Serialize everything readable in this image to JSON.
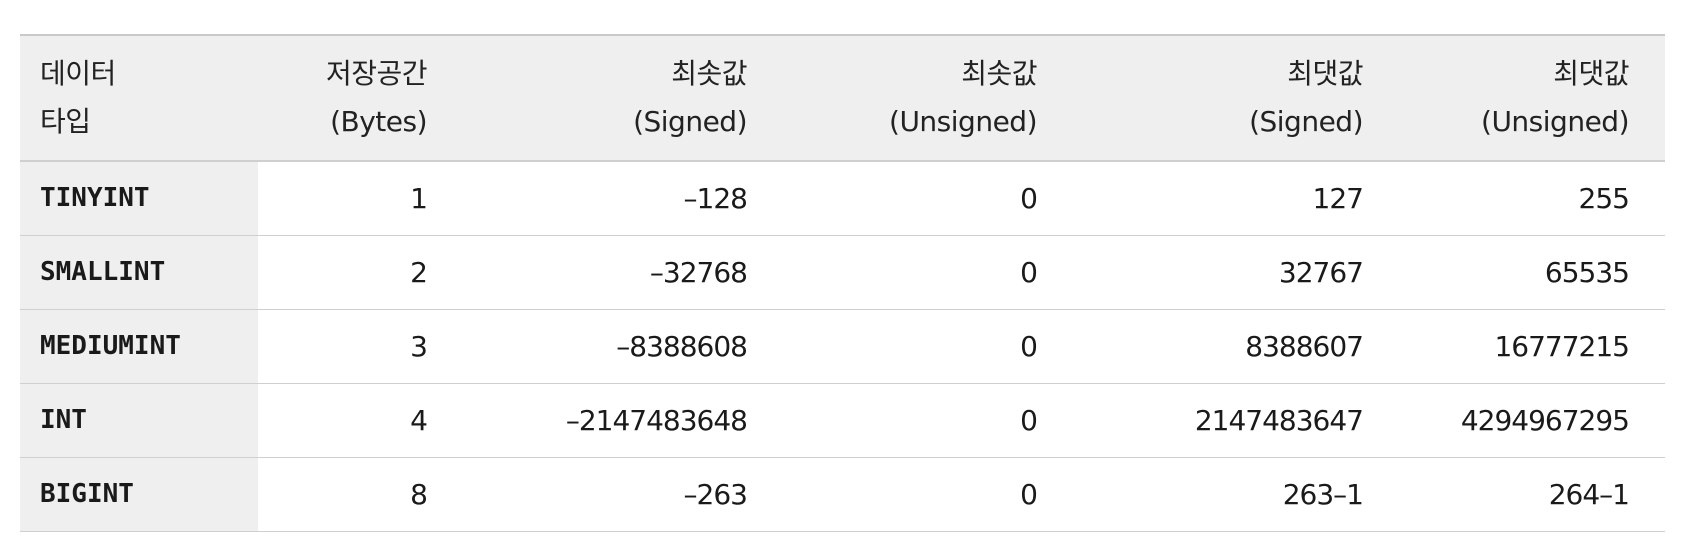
{
  "table": {
    "headers": [
      {
        "line1": "데이터",
        "line2": "타입"
      },
      {
        "line1": "저장공간",
        "line2": "(Bytes)"
      },
      {
        "line1": "최솟값",
        "line2": "(Signed)"
      },
      {
        "line1": "최솟값",
        "line2": "(Unsigned)"
      },
      {
        "line1": "최댓값",
        "line2": "(Signed)"
      },
      {
        "line1": "최댓값",
        "line2": "(Unsigned)"
      }
    ],
    "rows": [
      [
        "TINYINT",
        "1",
        "–128",
        "0",
        "127",
        "255"
      ],
      [
        "SMALLINT",
        "2",
        "–32768",
        "0",
        "32767",
        "65535"
      ],
      [
        "MEDIUMINT",
        "3",
        "–8388608",
        "0",
        "8388607",
        "16777215"
      ],
      [
        "INT",
        "4",
        "–2147483648",
        "0",
        "2147483647",
        "4294967295"
      ],
      [
        "BIGINT",
        "8",
        "–263",
        "0",
        "263–1",
        "264–1"
      ]
    ]
  }
}
